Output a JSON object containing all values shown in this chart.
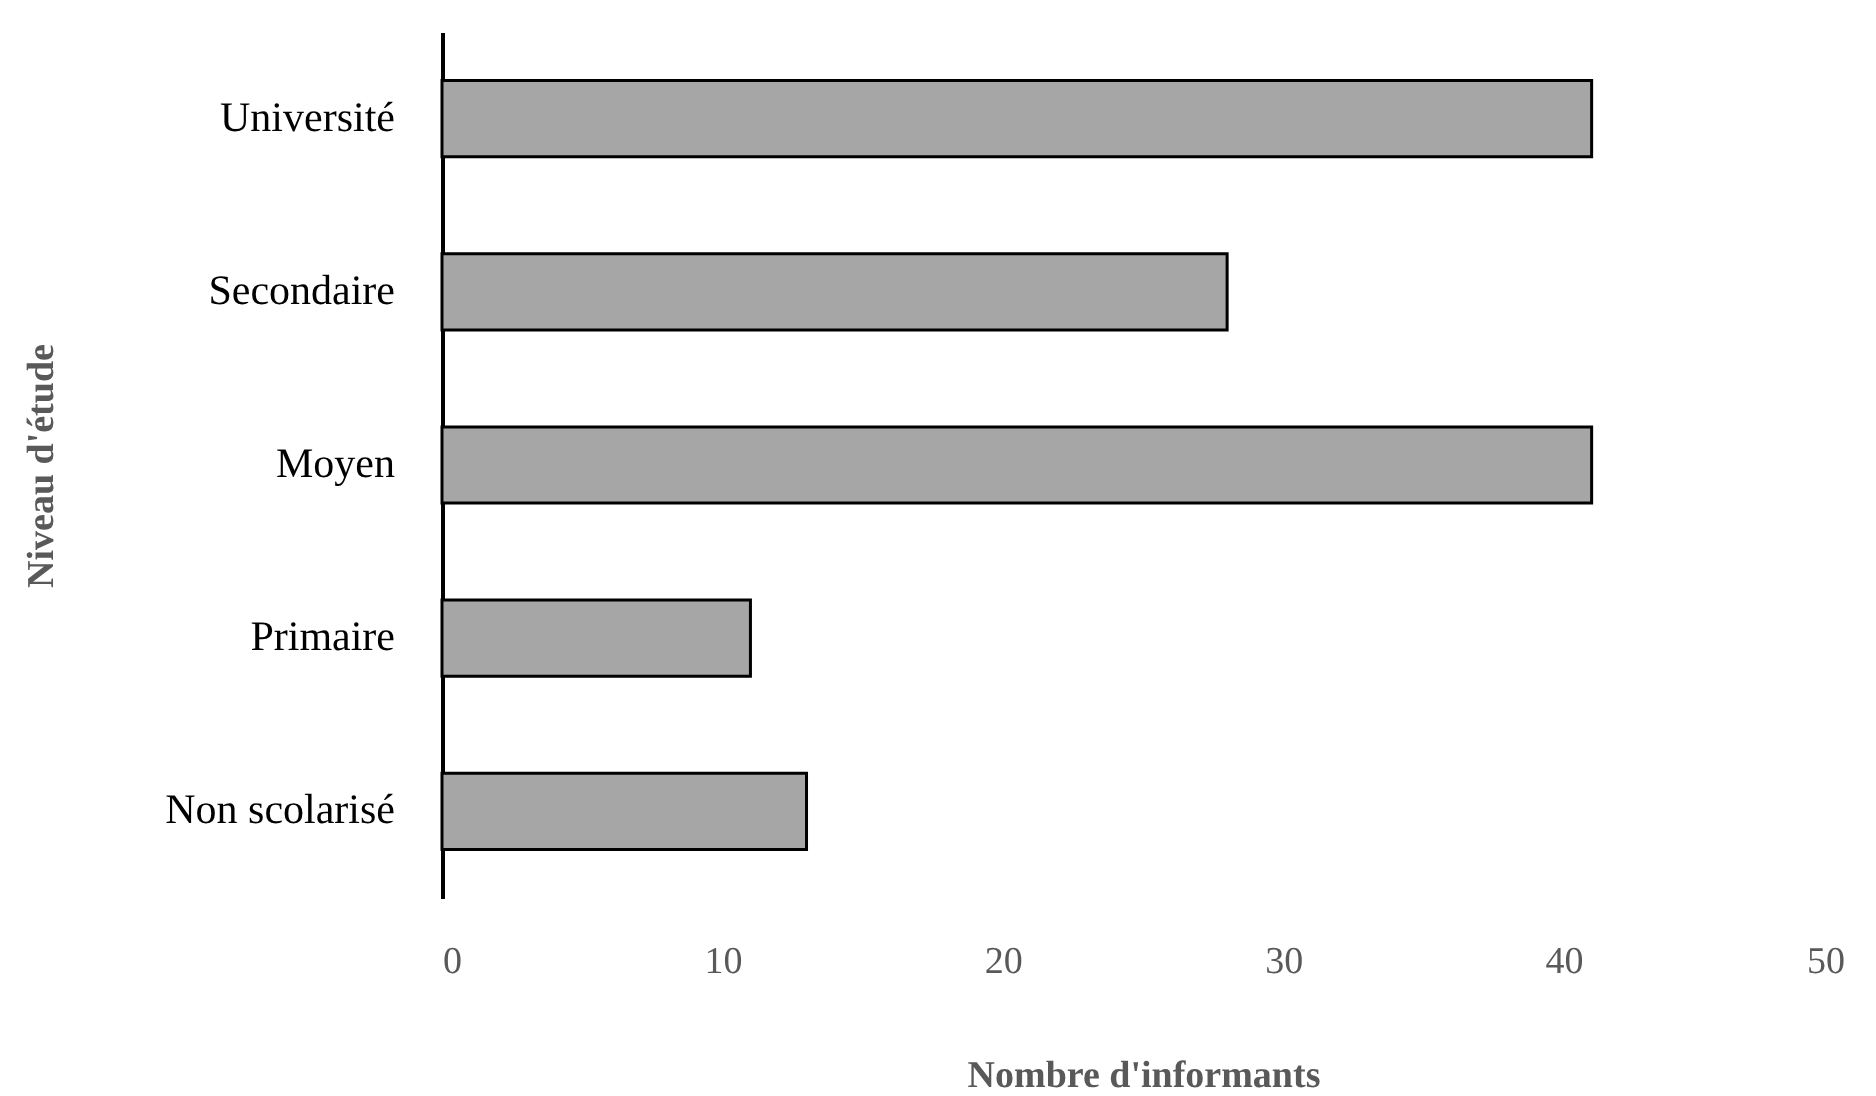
{
  "chart_data": {
    "type": "bar",
    "orientation": "horizontal",
    "xlabel": "Nombre  d'informants",
    "ylabel": "Niveau  d'étude",
    "categories": [
      "Université",
      "Secondaire",
      "Moyen",
      "Primaire",
      "Non scolarisé"
    ],
    "values": [
      41,
      28,
      41,
      11,
      13
    ],
    "color": "#a6a6a6",
    "xlim": [
      0,
      50
    ],
    "xticks": [
      0,
      10,
      20,
      30,
      40,
      50
    ],
    "grid": false
  }
}
